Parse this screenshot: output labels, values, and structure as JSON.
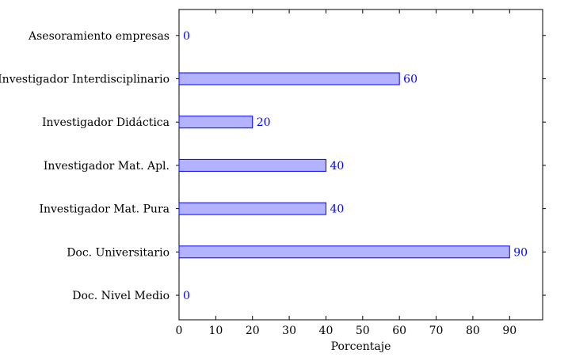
{
  "chart_data": {
    "type": "bar",
    "orientation": "horizontal",
    "categories": [
      "Doc. Nivel Medio",
      "Doc. Universitario",
      "Investigador Mat. Pura",
      "Investigador Mat. Apl.",
      "Investigador Didáctica",
      "Investigador Interdisciplinario",
      "Asesoramiento empresas"
    ],
    "values": [
      0,
      90,
      40,
      40,
      20,
      60,
      0
    ],
    "data_labels": [
      "0",
      "90",
      "40",
      "40",
      "20",
      "60",
      "0"
    ],
    "xlabel": "Porcentaje",
    "ylabel": "",
    "xlim": [
      0,
      99
    ],
    "xticks": [
      0,
      10,
      20,
      30,
      40,
      50,
      60,
      70,
      80,
      90
    ],
    "xtick_labels": [
      "0",
      "10",
      "20",
      "30",
      "40",
      "50",
      "60",
      "70",
      "80",
      "90"
    ],
    "grid": false,
    "colors": {
      "bar_fill": "#b3b3ff",
      "bar_stroke": "#0000ff",
      "label": "#0000ff",
      "axis": "#000000"
    }
  }
}
